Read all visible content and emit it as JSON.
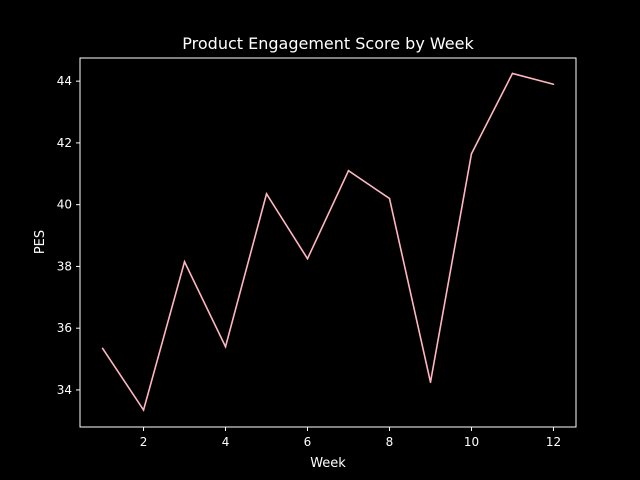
{
  "chart_data": {
    "type": "line",
    "title": "Product Engagement Score by Week",
    "xlabel": "Week",
    "ylabel": "PES",
    "xlim": [
      0.45,
      12.55
    ],
    "ylim": [
      32.8,
      44.75
    ],
    "x_ticks": [
      2,
      4,
      6,
      8,
      10,
      12
    ],
    "y_ticks": [
      34,
      36,
      38,
      40,
      42,
      44
    ],
    "grid": false,
    "legend": "none",
    "series": [
      {
        "color": "#ffb6c1",
        "x": [
          1,
          2,
          3,
          4,
          5,
          6,
          7,
          8,
          9,
          10,
          11,
          12
        ],
        "y": [
          35.35,
          33.35,
          38.15,
          35.4,
          40.35,
          38.25,
          41.1,
          40.2,
          34.25,
          41.65,
          44.25,
          43.9
        ]
      }
    ],
    "colors": {
      "background": "#000000",
      "axes": "#ffffff",
      "text": "#ffffff"
    }
  }
}
